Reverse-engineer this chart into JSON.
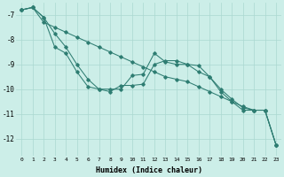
{
  "xlabel": "Humidex (Indice chaleur)",
  "bg_color": "#cceee8",
  "line_color": "#2e7d72",
  "xlim": [
    -0.5,
    23.5
  ],
  "ylim": [
    -12.7,
    -6.5
  ],
  "yticks": [
    -7,
    -8,
    -9,
    -10,
    -11,
    -12
  ],
  "xticks": [
    0,
    1,
    2,
    3,
    4,
    5,
    6,
    7,
    8,
    9,
    10,
    11,
    12,
    13,
    14,
    15,
    16,
    17,
    18,
    19,
    20,
    21,
    22,
    23
  ],
  "line1_x": [
    0,
    1,
    2,
    3,
    4,
    5,
    6,
    7,
    8,
    9,
    10,
    11,
    12,
    13,
    14,
    15,
    16,
    17,
    18,
    19,
    20,
    21,
    22,
    23
  ],
  "line1_y": [
    -6.8,
    -6.7,
    -7.1,
    -7.75,
    -8.3,
    -9.0,
    -9.6,
    -10.0,
    -10.0,
    -10.0,
    -9.45,
    -9.4,
    -8.55,
    -8.9,
    -9.0,
    -9.0,
    -9.05,
    -9.5,
    -10.0,
    -10.4,
    -10.75,
    -10.85,
    -10.85,
    -12.25
  ],
  "line2_x": [
    0,
    1,
    2,
    3,
    4,
    5,
    6,
    7,
    8,
    9,
    10,
    11,
    12,
    13,
    14,
    15,
    16,
    17,
    18,
    19,
    20,
    21,
    22,
    23
  ],
  "line2_y": [
    -6.8,
    -6.7,
    -7.1,
    -8.3,
    -8.55,
    -9.3,
    -9.9,
    -10.0,
    -10.1,
    -9.85,
    -9.85,
    -9.8,
    -9.0,
    -8.85,
    -8.85,
    -9.0,
    -9.3,
    -9.5,
    -10.1,
    -10.5,
    -10.85,
    -10.85,
    -10.85,
    -12.25
  ],
  "line3_x": [
    0,
    1,
    2,
    3,
    4,
    5,
    6,
    7,
    8,
    9,
    10,
    11,
    12,
    13,
    14,
    15,
    16,
    17,
    18,
    19,
    20,
    21,
    22,
    23
  ],
  "line3_y": [
    -6.8,
    -6.7,
    -7.3,
    -7.5,
    -7.7,
    -7.9,
    -8.1,
    -8.3,
    -8.5,
    -8.7,
    -8.9,
    -9.1,
    -9.3,
    -9.5,
    -9.6,
    -9.7,
    -9.9,
    -10.1,
    -10.3,
    -10.5,
    -10.7,
    -10.85,
    -10.85,
    -12.25
  ]
}
